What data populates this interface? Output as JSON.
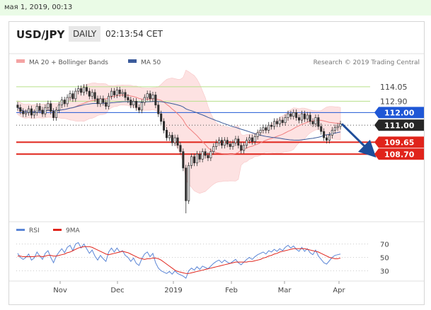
{
  "top_bar": {
    "timestamp": "мая 1, 2019, 00:13"
  },
  "header": {
    "pair": "USD/JPY",
    "timeframe": "DAILY",
    "time": "02:13:54 CET"
  },
  "legend": {
    "ma20_label": "MA 20 + Bollinger Bands",
    "ma50_label": "MA 50",
    "credit": "Research © 2019 Trading Central",
    "rsi_label": "RSI",
    "ma9_label": "9MA"
  },
  "colors": {
    "bollinger_fill": "#fde2e2",
    "ma20": "#f08080",
    "ma50": "#3b5b9b",
    "resistance_line": "#b6e08a",
    "pivot_blue": "#1f57d6",
    "pivot_dark": "#262626",
    "support_red": "#e0241b",
    "arrow": "#1f4e9a",
    "rsi": "#5b86d6",
    "rsi_ma": "#e0241b"
  },
  "chart_data": [
    {
      "type": "candlestick",
      "title": "USD/JPY",
      "timeframe": "DAILY",
      "x_ticks": [
        "Nov",
        "Dec",
        "2019",
        "Feb",
        "Mar",
        "Apr"
      ],
      "ylim": [
        103.5,
        115.5
      ],
      "levels": [
        {
          "value": 114.05,
          "label": "114.05",
          "style": "resistance"
        },
        {
          "value": 112.9,
          "label": "112.90",
          "style": "resistance"
        },
        {
          "value": 112.0,
          "label": "112.00",
          "style": "pivot-blue"
        },
        {
          "value": 111.0,
          "label": "111.00",
          "style": "current"
        },
        {
          "value": 109.65,
          "label": "109.65",
          "style": "support"
        },
        {
          "value": 108.7,
          "label": "108.70",
          "style": "support"
        }
      ],
      "forecast_arrow": {
        "from": 111.1,
        "to": 108.9,
        "direction": "down"
      },
      "closes": [
        112.4,
        112.1,
        111.9,
        112.0,
        112.3,
        111.8,
        112.0,
        112.5,
        112.2,
        111.9,
        112.4,
        112.7,
        112.1,
        111.6,
        112.2,
        112.6,
        113.0,
        112.7,
        113.2,
        113.5,
        113.1,
        113.7,
        113.9,
        113.6,
        114.0,
        113.7,
        113.3,
        113.6,
        113.1,
        112.7,
        113.1,
        112.8,
        112.5,
        113.3,
        113.7,
        113.4,
        113.8,
        113.5,
        113.6,
        113.2,
        113.0,
        112.6,
        112.9,
        112.4,
        112.2,
        112.8,
        113.2,
        113.5,
        113.1,
        113.4,
        112.6,
        111.9,
        111.3,
        110.6,
        110.0,
        110.2,
        109.6,
        110.0,
        109.4,
        108.9,
        107.6,
        105.0,
        107.8,
        108.5,
        108.0,
        108.7,
        108.3,
        108.9,
        108.6,
        108.4,
        108.9,
        109.3,
        109.6,
        109.8,
        109.4,
        109.8,
        109.5,
        109.3,
        109.6,
        109.9,
        109.4,
        109.0,
        109.4,
        109.8,
        110.0,
        109.7,
        110.1,
        110.4,
        110.6,
        110.8,
        110.6,
        111.0,
        110.9,
        111.3,
        111.1,
        111.4,
        111.2,
        111.6,
        111.9,
        111.7,
        112.0,
        111.6,
        111.4,
        111.9,
        111.5,
        111.8,
        111.3,
        111.1,
        111.6,
        110.9,
        110.5,
        110.0,
        109.8,
        110.2,
        110.6,
        110.8,
        110.9,
        111.1
      ],
      "spike_low": 104.0
    },
    {
      "type": "line",
      "title": "RSI",
      "y_ticks": [
        70,
        50,
        30
      ],
      "ylim": [
        20,
        80
      ],
      "series": [
        {
          "name": "RSI",
          "values": [
            56,
            50,
            47,
            50,
            55,
            46,
            49,
            58,
            52,
            47,
            56,
            60,
            50,
            42,
            52,
            58,
            63,
            57,
            65,
            68,
            60,
            70,
            72,
            64,
            70,
            63,
            56,
            61,
            52,
            46,
            53,
            48,
            44,
            58,
            64,
            58,
            64,
            58,
            60,
            53,
            50,
            44,
            49,
            41,
            38,
            48,
            55,
            58,
            51,
            56,
            42,
            34,
            30,
            28,
            26,
            29,
            25,
            30,
            26,
            24,
            22,
            19,
            30,
            34,
            31,
            36,
            32,
            37,
            35,
            33,
            37,
            41,
            44,
            46,
            42,
            46,
            43,
            41,
            44,
            47,
            42,
            39,
            43,
            47,
            50,
            47,
            51,
            54,
            56,
            58,
            55,
            60,
            58,
            62,
            59,
            63,
            60,
            65,
            68,
            64,
            67,
            62,
            59,
            65,
            59,
            63,
            57,
            54,
            61,
            52,
            47,
            42,
            40,
            45,
            50,
            53,
            54,
            55
          ]
        },
        {
          "name": "9MA",
          "values": [
            52,
            52,
            51,
            51,
            51,
            51,
            51,
            52,
            52,
            51,
            52,
            53,
            53,
            52,
            52,
            53,
            54,
            55,
            57,
            58,
            60,
            62,
            64,
            65,
            66,
            66,
            66,
            65,
            63,
            61,
            59,
            57,
            55,
            54,
            55,
            56,
            57,
            58,
            59,
            58,
            57,
            55,
            53,
            51,
            49,
            48,
            47,
            48,
            48,
            49,
            49,
            48,
            46,
            43,
            40,
            37,
            34,
            31,
            29,
            28,
            27,
            26,
            26,
            27,
            28,
            29,
            30,
            31,
            32,
            33,
            34,
            35,
            36,
            37,
            38,
            39,
            40,
            41,
            42,
            43,
            43,
            43,
            43,
            43,
            44,
            44,
            45,
            46,
            47,
            49,
            50,
            52,
            53,
            55,
            56,
            58,
            59,
            60,
            61,
            62,
            63,
            63,
            63,
            63,
            63,
            62,
            61,
            60,
            59,
            58,
            56,
            54,
            52,
            50,
            49,
            48,
            48,
            49
          ]
        }
      ]
    }
  ]
}
